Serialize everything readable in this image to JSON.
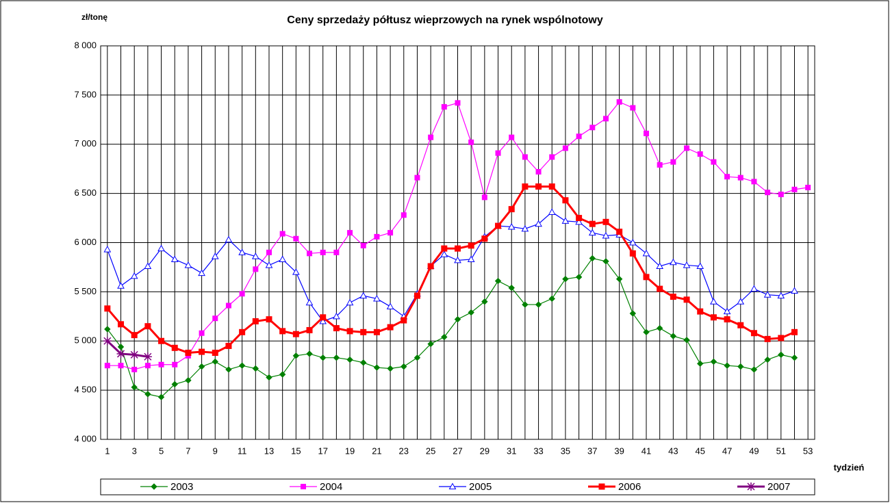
{
  "chart_data": {
    "type": "line",
    "title": "Ceny sprzedaży półtusz wieprzowych na rynek wspólnotowy",
    "y_label": "zł/tonę",
    "x_label": "tydzień",
    "categories": [
      1,
      null,
      3,
      null,
      5,
      null,
      7,
      null,
      9,
      null,
      11,
      null,
      13,
      null,
      15,
      null,
      17,
      null,
      19,
      null,
      21,
      null,
      23,
      null,
      25,
      null,
      27,
      null,
      29,
      null,
      31,
      null,
      33,
      null,
      35,
      null,
      37,
      null,
      39,
      null,
      41,
      null,
      43,
      null,
      45,
      null,
      47,
      null,
      49,
      null,
      51,
      null,
      53
    ],
    "ylim": [
      4000,
      8000
    ],
    "yticks": [
      {
        "value": 4000,
        "label": "4 000"
      },
      {
        "value": 4500,
        "label": "4 500"
      },
      {
        "value": 5000,
        "label": "5 000"
      },
      {
        "value": 5500,
        "label": "5 500"
      },
      {
        "value": 6000,
        "label": "6 000"
      },
      {
        "value": 6500,
        "label": "6 500"
      },
      {
        "value": 7000,
        "label": "7 000"
      },
      {
        "value": 7500,
        "label": "7 500"
      },
      {
        "value": 8000,
        "label": "8 000"
      }
    ],
    "grid": true,
    "legend": "bottom",
    "series": [
      {
        "name": "2003",
        "color": "#008000",
        "marker": "diamond",
        "values": [
          5120,
          4940,
          4530,
          4460,
          4430,
          4560,
          4600,
          4740,
          4790,
          4710,
          4750,
          4720,
          4630,
          4660,
          4850,
          4870,
          4830,
          4830,
          4810,
          4780,
          4730,
          4720,
          4740,
          4830,
          4970,
          5040,
          5220,
          5290,
          5400,
          5610,
          5540,
          5370,
          5370,
          5430,
          5630,
          5650,
          5840,
          5810,
          5630,
          5280,
          5090,
          5130,
          5050,
          5010,
          4770,
          4790,
          4750,
          4740,
          4710,
          4810,
          4860,
          4830,
          null
        ]
      },
      {
        "name": "2004",
        "color": "#ff00ff",
        "marker": "square",
        "values": [
          4750,
          4750,
          4710,
          4750,
          4760,
          4760,
          4850,
          5080,
          5230,
          5360,
          5480,
          5730,
          5900,
          6090,
          6040,
          5890,
          5900,
          5900,
          6100,
          5970,
          6060,
          6100,
          6280,
          6660,
          7070,
          7380,
          7420,
          7020,
          6460,
          6910,
          7070,
          6870,
          6720,
          6870,
          6960,
          7080,
          7170,
          7260,
          7430,
          7370,
          7110,
          6790,
          6820,
          6960,
          6900,
          6820,
          6670,
          6660,
          6620,
          6510,
          6490,
          6540,
          6560
        ]
      },
      {
        "name": "2005",
        "color": "#0000ff",
        "marker": "triangle",
        "values": [
          5930,
          5560,
          5660,
          5760,
          5940,
          5830,
          5770,
          5690,
          5860,
          6030,
          5900,
          5860,
          5770,
          5830,
          5700,
          5390,
          5200,
          5250,
          5390,
          5460,
          5430,
          5350,
          5250,
          5480,
          5760,
          5880,
          5820,
          5830,
          6060,
          6170,
          6160,
          6140,
          6190,
          6310,
          6220,
          6210,
          6100,
          6070,
          6080,
          6000,
          5890,
          5760,
          5800,
          5770,
          5760,
          5400,
          5300,
          5400,
          5530,
          5470,
          5460,
          5510,
          null
        ]
      },
      {
        "name": "2006",
        "color": "#ff0000",
        "marker": "bigsquare",
        "values": [
          5330,
          5170,
          5060,
          5150,
          5000,
          4930,
          4880,
          4890,
          4880,
          4950,
          5090,
          5200,
          5220,
          5100,
          5070,
          5110,
          5240,
          5130,
          5100,
          5090,
          5090,
          5140,
          5210,
          5460,
          5760,
          5940,
          5940,
          5970,
          6040,
          6170,
          6340,
          6570,
          6570,
          6570,
          6430,
          6250,
          6190,
          6210,
          6110,
          5890,
          5650,
          5530,
          5450,
          5420,
          5300,
          5240,
          5220,
          5160,
          5080,
          5020,
          5030,
          5090,
          null
        ]
      },
      {
        "name": "2007",
        "color": "#800080",
        "marker": "star",
        "values": [
          5000,
          4870,
          4860,
          4840,
          null,
          null,
          null,
          null,
          null,
          null,
          null,
          null,
          null,
          null,
          null,
          null,
          null,
          null,
          null,
          null,
          null,
          null,
          null,
          null,
          null,
          null,
          null,
          null,
          null,
          null,
          null,
          null,
          null,
          null,
          null,
          null,
          null,
          null,
          null,
          null,
          null,
          null,
          null,
          null,
          null,
          null,
          null,
          null,
          null,
          null,
          null,
          null,
          null
        ]
      }
    ]
  }
}
